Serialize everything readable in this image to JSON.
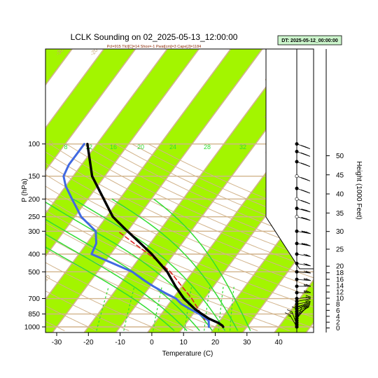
{
  "chart_data": {
    "type": "line",
    "title": "LCLK Sounding on 02_2025-05-13_12:00:00",
    "subtitle": "Pcl=915 Tlcl[C]=14 Shox=-1 Pwat[cm]=3 Cape[J]=1184",
    "valid_box": "DT: 2025-05-12_00:00:00",
    "xlabel": "Temperature (C)",
    "ylabel": "P (hPa)",
    "y2label": "Height (1000 Feet)",
    "xlim": [
      -33,
      44
    ],
    "ylim": [
      1020,
      100
    ],
    "y_scale": "log",
    "x_ticks": [
      "-30",
      "-20",
      "-10",
      "0",
      "10",
      "20",
      "30",
      "40"
    ],
    "y_ticks": [
      "100",
      "150",
      "200",
      "250",
      "300",
      "400",
      "500",
      "700",
      "850",
      "1000"
    ],
    "height_ticks": [
      "0",
      "2",
      "4",
      "6",
      "8",
      "10",
      "12",
      "14",
      "16",
      "18",
      "20",
      "25",
      "30",
      "35",
      "40",
      "45",
      "50"
    ],
    "isotherm_labels": [
      "-30",
      "-20",
      "-10",
      "0",
      "10",
      "20",
      "30",
      "40"
    ],
    "mixing_ratio_labels": [
      "8",
      "12",
      "16",
      "20",
      "24",
      "28",
      "32"
    ],
    "colors": {
      "temperature": "#000000",
      "dewpoint": "#4169e1",
      "parcel": "#dd2222",
      "isotherm_band": "#a3f500",
      "isotherm": "#d2b48c",
      "moist_adiabat": "#33dd33",
      "mixing_ratio": "#33dd33",
      "valid_box_fill": "#ccf5cc"
    },
    "series": [
      {
        "key": "temperature",
        "points": [
          [
            1000,
            22.5
          ],
          [
            985,
            22
          ],
          [
            950,
            20
          ],
          [
            925,
            18
          ],
          [
            900,
            16
          ],
          [
            850,
            12.8
          ],
          [
            800,
            9.5
          ],
          [
            700,
            3.5
          ],
          [
            600,
            -2
          ],
          [
            500,
            -8
          ],
          [
            400,
            -17
          ],
          [
            350,
            -23
          ],
          [
            300,
            -30
          ],
          [
            250,
            -38
          ],
          [
            200,
            -45
          ],
          [
            150,
            -54
          ],
          [
            100,
            -63
          ]
        ]
      },
      {
        "key": "dewpoint",
        "points": [
          [
            1000,
            18
          ],
          [
            975,
            17.5
          ],
          [
            950,
            17
          ],
          [
            925,
            16.5
          ],
          [
            900,
            15
          ],
          [
            850,
            12
          ],
          [
            800,
            8
          ],
          [
            750,
            4
          ],
          [
            700,
            1
          ],
          [
            650,
            -4
          ],
          [
            600,
            -9
          ],
          [
            550,
            -14
          ],
          [
            500,
            -19
          ],
          [
            450,
            -27
          ],
          [
            400,
            -36
          ],
          [
            350,
            -37
          ],
          [
            300,
            -40
          ],
          [
            280,
            -43
          ],
          [
            250,
            -48
          ],
          [
            220,
            -52
          ],
          [
            200,
            -55
          ],
          [
            170,
            -60
          ],
          [
            150,
            -63
          ],
          [
            130,
            -64
          ],
          [
            100,
            -64
          ]
        ]
      },
      {
        "key": "parcel",
        "points": [
          [
            915,
            15
          ],
          [
            850,
            12.5
          ],
          [
            800,
            10.5
          ],
          [
            700,
            6
          ],
          [
            600,
            0
          ],
          [
            500,
            -7
          ],
          [
            450,
            -12
          ],
          [
            400,
            -18
          ],
          [
            350,
            -25
          ],
          [
            300,
            -33
          ]
        ]
      }
    ],
    "winds": [
      {
        "p": 1000,
        "dir": 150,
        "spd": 5
      },
      {
        "p": 975,
        "dir": 160,
        "spd": 5
      },
      {
        "p": 950,
        "dir": 180,
        "spd": 10
      },
      {
        "p": 925,
        "dir": 200,
        "spd": 10
      },
      {
        "p": 900,
        "dir": 220,
        "spd": 10
      },
      {
        "p": 875,
        "dir": 230,
        "spd": 10
      },
      {
        "p": 850,
        "dir": 240,
        "spd": 10
      },
      {
        "p": 825,
        "dir": 245,
        "spd": 10
      },
      {
        "p": 800,
        "dir": 250,
        "spd": 10
      },
      {
        "p": 775,
        "dir": 255,
        "spd": 10
      },
      {
        "p": 750,
        "dir": 260,
        "spd": 10
      },
      {
        "p": 725,
        "dir": 260,
        "spd": 10
      },
      {
        "p": 700,
        "dir": 265,
        "spd": 10
      },
      {
        "p": 650,
        "dir": 270,
        "spd": 15
      },
      {
        "p": 600,
        "dir": 270,
        "spd": 15
      },
      {
        "p": 550,
        "dir": 275,
        "spd": 15
      },
      {
        "p": 500,
        "dir": 275,
        "spd": 20
      },
      {
        "p": 450,
        "dir": 280,
        "spd": 20
      },
      {
        "p": 400,
        "dir": 280,
        "spd": 20
      },
      {
        "p": 350,
        "dir": 280,
        "spd": 25
      },
      {
        "p": 300,
        "dir": 280,
        "spd": 25
      },
      {
        "p": 250,
        "dir": 285,
        "spd": 25
      },
      {
        "p": 225,
        "dir": 285,
        "spd": 25
      },
      {
        "p": 200,
        "dir": 290,
        "spd": 25
      },
      {
        "p": 175,
        "dir": 290,
        "spd": 25
      },
      {
        "p": 150,
        "dir": 290,
        "spd": 25
      },
      {
        "p": 125,
        "dir": 290,
        "spd": 25
      },
      {
        "p": 110,
        "dir": 290,
        "spd": 25
      },
      {
        "p": 100,
        "dir": 290,
        "spd": 25
      }
    ]
  }
}
